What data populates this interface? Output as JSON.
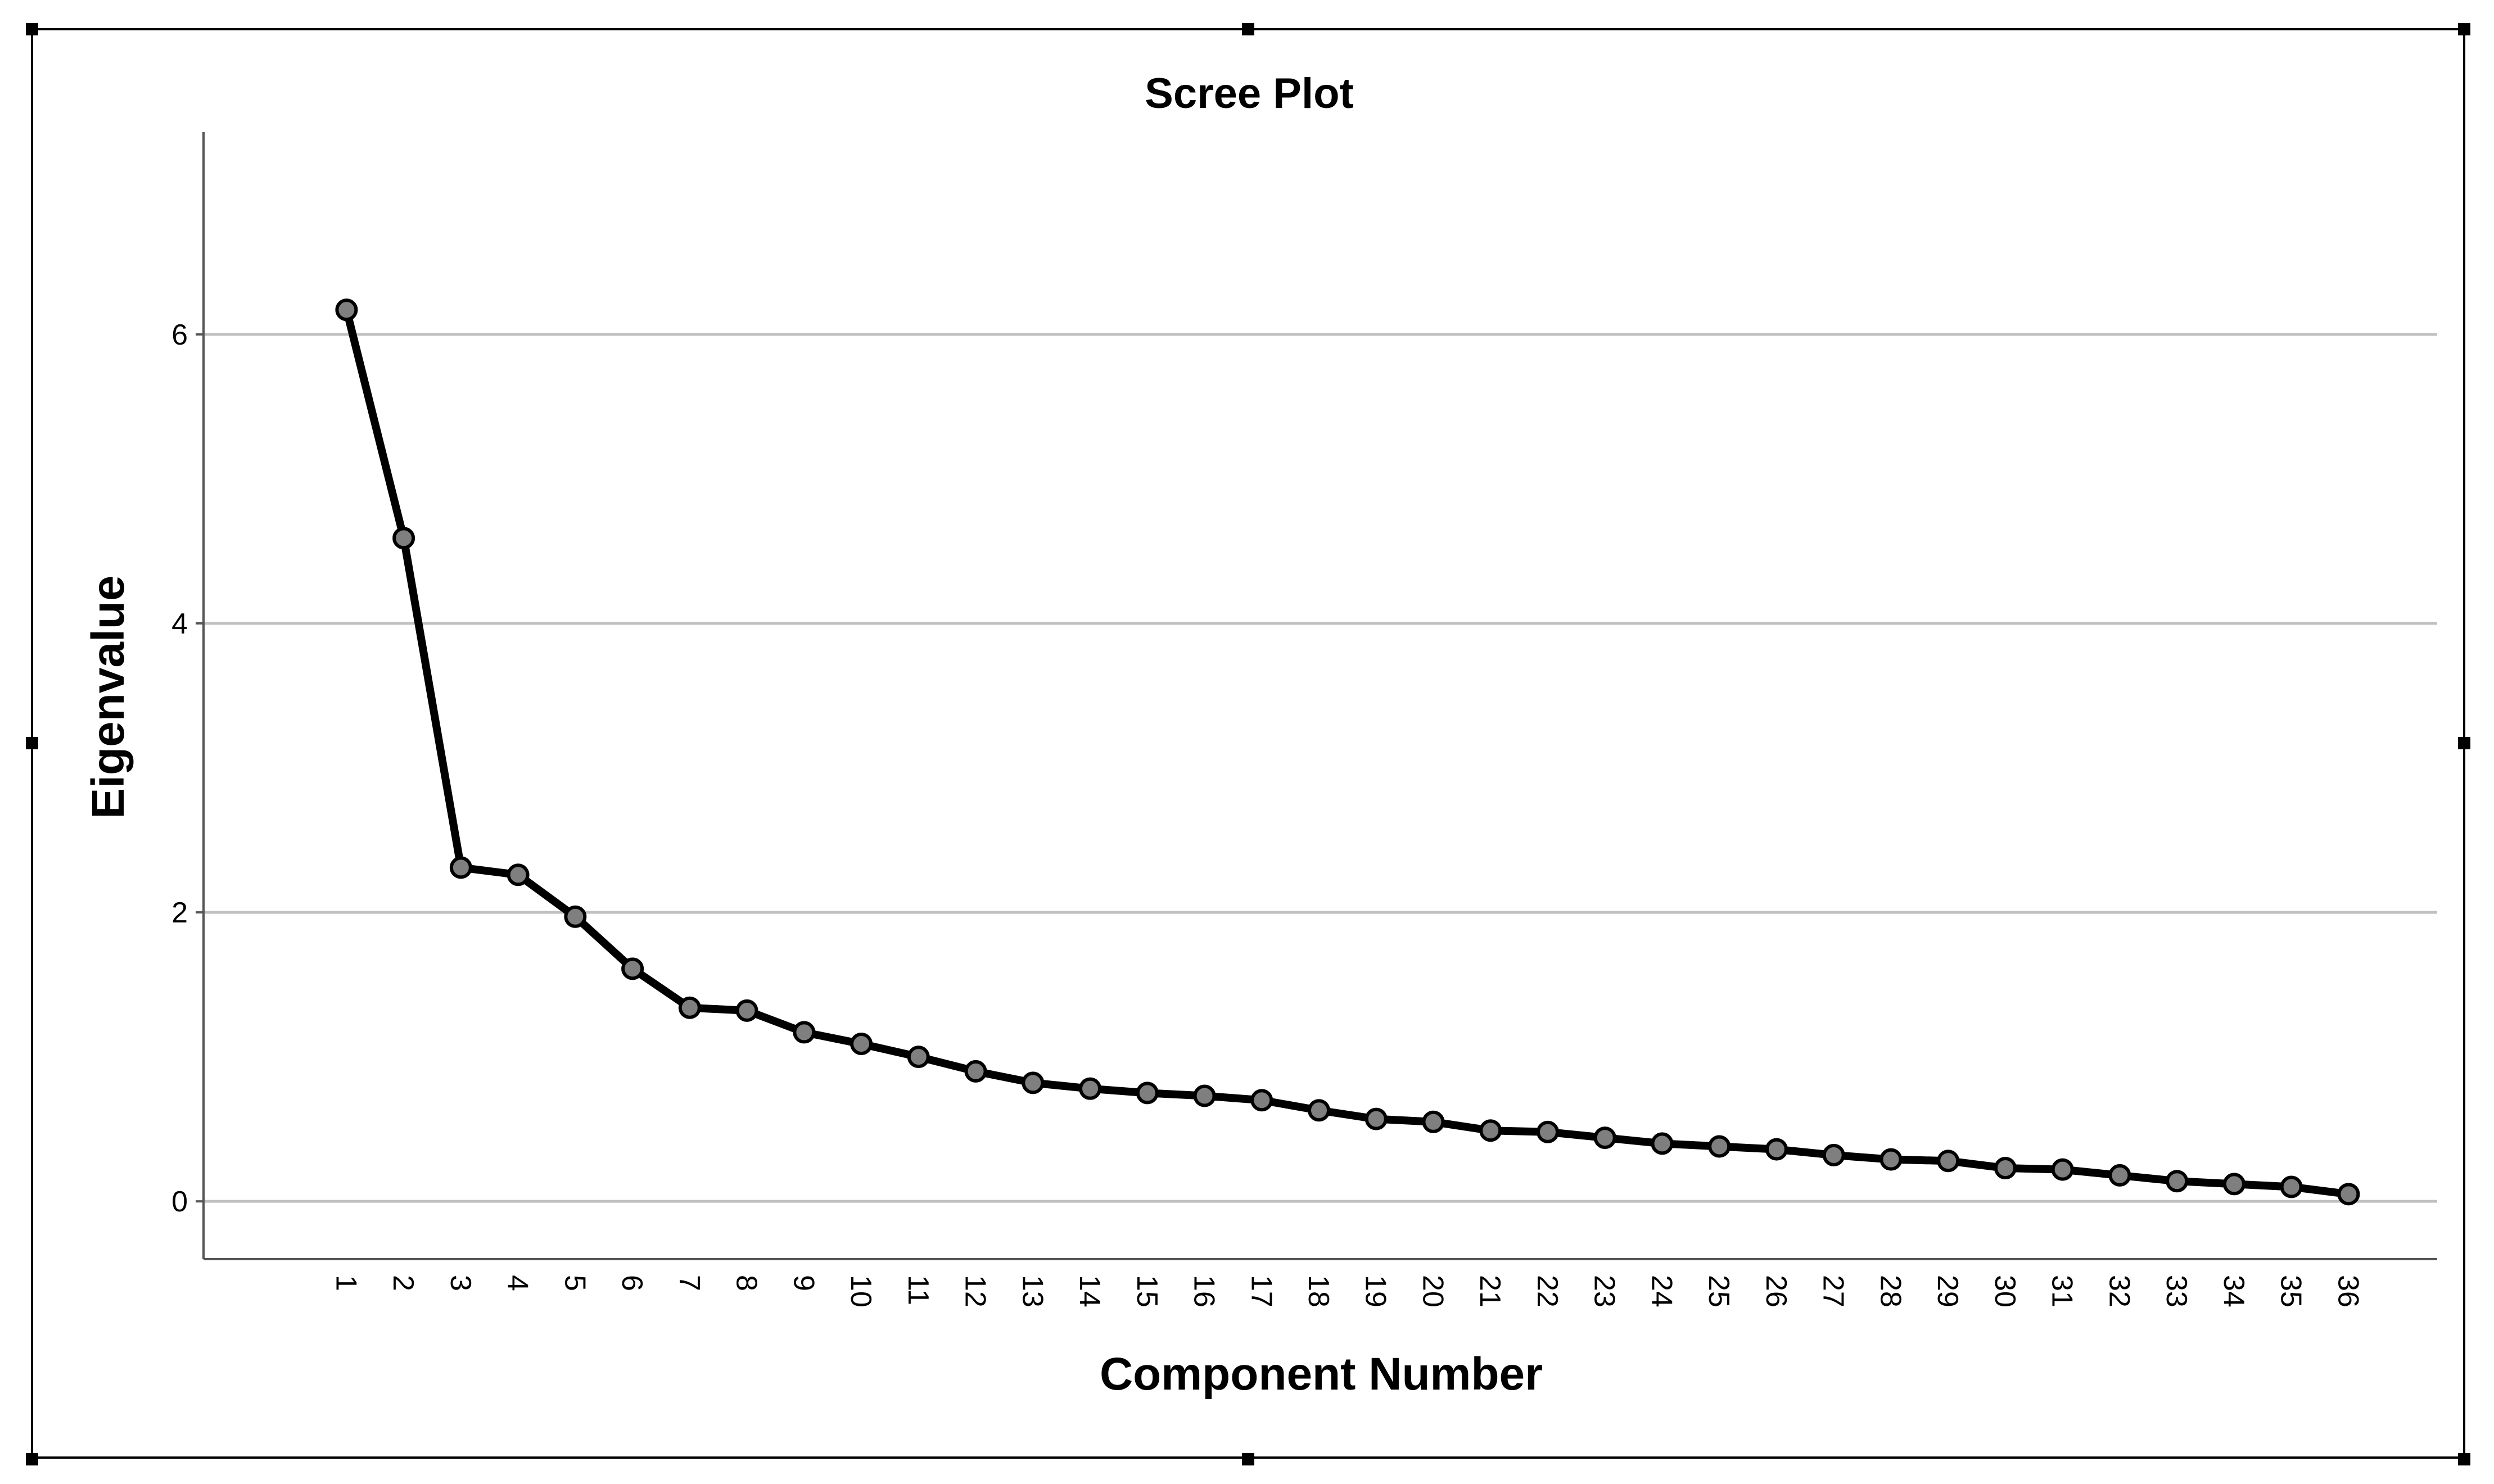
{
  "chart_data": {
    "type": "line",
    "title": "Scree Plot",
    "xlabel": "Component Number",
    "ylabel": "Eigenvalue",
    "x": [
      1,
      2,
      3,
      4,
      5,
      6,
      7,
      8,
      9,
      10,
      11,
      12,
      13,
      14,
      15,
      16,
      17,
      18,
      19,
      20,
      21,
      22,
      23,
      24,
      25,
      26,
      27,
      28,
      29,
      30,
      31,
      32,
      33,
      34,
      35,
      36
    ],
    "values": [
      6.17,
      4.59,
      2.31,
      2.26,
      1.97,
      1.61,
      1.34,
      1.32,
      1.17,
      1.09,
      1.0,
      0.9,
      0.82,
      0.78,
      0.75,
      0.73,
      0.7,
      0.63,
      0.57,
      0.55,
      0.49,
      0.48,
      0.44,
      0.4,
      0.38,
      0.36,
      0.32,
      0.29,
      0.28,
      0.23,
      0.22,
      0.18,
      0.14,
      0.12,
      0.1,
      0.05
    ],
    "yticks": [
      0,
      2,
      4,
      6
    ],
    "ylim": [
      -0.4,
      7.4
    ],
    "xlim": [
      -1.5,
      37.5
    ],
    "grid": true,
    "legend": "none",
    "colors": {
      "line": "#000000",
      "marker_fill": "#7f7f7f",
      "gridline": "#c0c0c0",
      "axis": "#555555"
    }
  }
}
